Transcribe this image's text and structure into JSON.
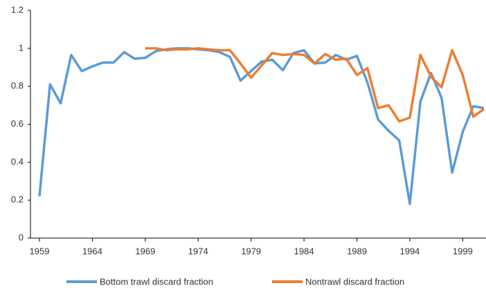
{
  "chart_data": {
    "type": "line",
    "x": [
      1959,
      1960,
      1961,
      1962,
      1963,
      1964,
      1965,
      1966,
      1967,
      1968,
      1969,
      1970,
      1971,
      1972,
      1973,
      1974,
      1975,
      1976,
      1977,
      1978,
      1979,
      1980,
      1981,
      1982,
      1983,
      1984,
      1985,
      1986,
      1987,
      1988,
      1989,
      1990,
      1991,
      1992,
      1993,
      1994,
      1995,
      1996,
      1997,
      1998,
      1999,
      2000,
      2001
    ],
    "series": [
      {
        "name": "Bottom trawl discard fraction",
        "color": "#5b9bd5",
        "values": [
          0.22,
          0.81,
          0.71,
          0.965,
          0.88,
          0.905,
          0.925,
          0.925,
          0.98,
          0.945,
          0.95,
          0.985,
          0.995,
          1.0,
          1.0,
          0.995,
          0.99,
          0.98,
          0.955,
          0.83,
          0.88,
          0.93,
          0.94,
          0.885,
          0.975,
          0.99,
          0.92,
          0.925,
          0.965,
          0.94,
          0.96,
          0.82,
          0.625,
          0.565,
          0.515,
          0.18,
          0.72,
          0.87,
          0.74,
          0.345,
          0.56,
          0.695,
          0.685
        ]
      },
      {
        "name": "Nontrawl discard fraction",
        "color": "#ed7d31",
        "values": [
          null,
          null,
          null,
          null,
          null,
          null,
          null,
          null,
          null,
          null,
          1.0,
          1.0,
          0.99,
          0.995,
          0.995,
          1.0,
          0.995,
          0.99,
          0.99,
          0.92,
          0.845,
          0.91,
          0.975,
          0.965,
          0.97,
          0.965,
          0.92,
          0.97,
          0.94,
          0.945,
          0.86,
          0.895,
          0.685,
          0.7,
          0.615,
          0.635,
          0.965,
          0.85,
          0.795,
          0.99,
          0.86,
          0.64,
          0.68
        ]
      }
    ],
    "xlim": [
      1958.15,
      2001.2
    ],
    "xticks": [
      1959,
      1964,
      1969,
      1974,
      1979,
      1984,
      1989,
      1994,
      1999
    ],
    "ylim": [
      0,
      1.2
    ],
    "yticks": [
      0,
      0.2,
      0.4,
      0.6,
      0.8,
      1,
      1.2
    ],
    "grid": false,
    "legend": "bottom"
  }
}
